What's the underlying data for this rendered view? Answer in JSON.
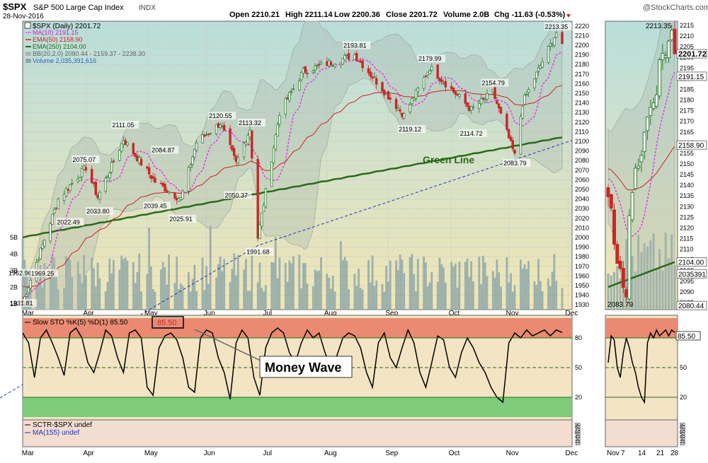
{
  "header": {
    "symbol": "$SPX",
    "name": "S&P 500 Large Cap Index",
    "exchange": "INDX",
    "date": "28-Nov-2016",
    "stats": {
      "open": "Open 2210.21",
      "high": "High 2211.14",
      "low": "Low 2200.36",
      "close": "Close 2201.72",
      "volume": "Volume 2.0B",
      "chg": "Chg -11.63 (-0.53%)"
    },
    "watermark": "@StockCharts.com"
  },
  "colors": {
    "price_up": "#2e7d32",
    "price_down": "#c62828",
    "ma10": "#e040e0",
    "ema50": "#cc2222",
    "ema250": "#2a6a1a",
    "volume": "#8fa8a8",
    "trendline": "#2233bb",
    "sto_line": "#000000",
    "overbought": "#e8705c",
    "oversold": "#6cc46c",
    "pane_bg_top": "#b8dcd8",
    "pane_bg_bottom": "#f3e6b8"
  },
  "legend": {
    "main_title": "$SPX (Daily) 2201.72",
    "ma10": "MA(10) 2191.15",
    "ema50": "EMA(50) 2158.90",
    "ema250": "EMA(250) 2104.00",
    "bb": "BB(20,2.0) 2080.44 - 2159.37 - 2238.30",
    "volume": "Volume 2,035,391,616"
  },
  "chart_data": [
    {
      "type": "candlestick",
      "title": "$SPX (Daily) 2201.72",
      "x_months": [
        "Mar",
        "Apr",
        "May",
        "Jun",
        "Jul",
        "Aug",
        "Sep",
        "Oct",
        "Nov",
        "Dec"
      ],
      "y_ticks": [
        2220,
        2210,
        2200,
        2190,
        2180,
        2170,
        2160,
        2150,
        2140,
        2130,
        2120,
        2110,
        2100,
        2090,
        2080,
        2070,
        2060,
        2050,
        2040,
        2030,
        2020,
        2010,
        2000,
        1990,
        1980,
        1970,
        1960,
        1950,
        1940,
        1930
      ],
      "ylim": [
        1925,
        2225
      ],
      "close_series": [
        {
          "date": "2016-02-29",
          "value": 1932
        },
        {
          "date": "2016-03-08",
          "value": 1980
        },
        {
          "date": "2016-03-18",
          "value": 2040
        },
        {
          "date": "2016-04-01",
          "value": 2073
        },
        {
          "date": "2016-04-07",
          "value": 2042
        },
        {
          "date": "2016-04-20",
          "value": 2102
        },
        {
          "date": "2016-05-06",
          "value": 2058
        },
        {
          "date": "2016-05-19",
          "value": 2040
        },
        {
          "date": "2016-05-27",
          "value": 2099
        },
        {
          "date": "2016-06-08",
          "value": 2119
        },
        {
          "date": "2016-06-16",
          "value": 2077
        },
        {
          "date": "2016-06-23",
          "value": 2113
        },
        {
          "date": "2016-06-27",
          "value": 2000
        },
        {
          "date": "2016-07-08",
          "value": 2130
        },
        {
          "date": "2016-07-20",
          "value": 2173
        },
        {
          "date": "2016-08-15",
          "value": 2190
        },
        {
          "date": "2016-09-09",
          "value": 2127
        },
        {
          "date": "2016-09-22",
          "value": 2177
        },
        {
          "date": "2016-10-13",
          "value": 2133
        },
        {
          "date": "2016-10-24",
          "value": 2151
        },
        {
          "date": "2016-11-04",
          "value": 2085
        },
        {
          "date": "2016-11-08",
          "value": 2140
        },
        {
          "date": "2016-11-25",
          "value": 2213
        },
        {
          "date": "2016-11-28",
          "value": 2201.72
        }
      ],
      "annotations": [
        {
          "label": "1931.81",
          "date": "2016-02-29",
          "value": 1931.81
        },
        {
          "label": "1962.96",
          "date": "2016-03-01",
          "value": 1962.96
        },
        {
          "label": "1969.25",
          "date": "2016-03-10",
          "value": 1969.25
        },
        {
          "label": "2022.49",
          "date": "2016-03-23",
          "value": 2022.49
        },
        {
          "label": "2075.07",
          "date": "2016-03-31",
          "value": 2075.07
        },
        {
          "label": "2033.80",
          "date": "2016-04-07",
          "value": 2033.8
        },
        {
          "label": "2111.05",
          "date": "2016-04-20",
          "value": 2111.05
        },
        {
          "label": "2084.87",
          "date": "2016-05-10",
          "value": 2084.87
        },
        {
          "label": "2039.45",
          "date": "2016-05-06",
          "value": 2039.45
        },
        {
          "label": "2025.91",
          "date": "2016-05-19",
          "value": 2025.91
        },
        {
          "label": "2120.55",
          "date": "2016-06-08",
          "value": 2120.55
        },
        {
          "label": "2050.37",
          "date": "2016-06-16",
          "value": 2050.37
        },
        {
          "label": "2113.32",
          "date": "2016-06-23",
          "value": 2113.32
        },
        {
          "label": "1991.68",
          "date": "2016-06-27",
          "value": 1991.68
        },
        {
          "label": "2193.81",
          "date": "2016-08-15",
          "value": 2193.81
        },
        {
          "label": "2179.99",
          "date": "2016-09-22",
          "value": 2179.99
        },
        {
          "label": "2119.12",
          "date": "2016-09-12",
          "value": 2119.12
        },
        {
          "label": "2154.79",
          "date": "2016-10-24",
          "value": 2154.79
        },
        {
          "label": "2114.72",
          "date": "2016-10-13",
          "value": 2114.72
        },
        {
          "label": "2083.79",
          "date": "2016-11-04",
          "value": 2083.79
        },
        {
          "label": "2213.35",
          "date": "2016-11-25",
          "value": 2213.35
        }
      ],
      "line_label": "Green Line",
      "right_tags": [
        "2201.72",
        "2191.15",
        "2158.90",
        "2104.00",
        "2035391",
        "2080.44"
      ]
    },
    {
      "type": "line",
      "title": "Slow STO %K(5) %D(1) 85.50",
      "value_box": "85.50",
      "callout": "Money Wave",
      "y_ticks": [
        80,
        50,
        20
      ],
      "ylim": [
        0,
        100
      ],
      "overbought": 80,
      "oversold": 20,
      "values": [
        85,
        75,
        40,
        80,
        88,
        75,
        60,
        42,
        85,
        90,
        80,
        55,
        45,
        65,
        88,
        82,
        60,
        45,
        85,
        88,
        80,
        30,
        22,
        70,
        82,
        85,
        78,
        60,
        30,
        25,
        80,
        88,
        85,
        60,
        45,
        18,
        75,
        88,
        80,
        40,
        22,
        70,
        85,
        90,
        85,
        65,
        55,
        75,
        88,
        80,
        85,
        65,
        50,
        62,
        80,
        85,
        82,
        70,
        45,
        30,
        75,
        85,
        60,
        50,
        70,
        88,
        75,
        45,
        30,
        55,
        82,
        78,
        50,
        40,
        65,
        80,
        70,
        55,
        45,
        30,
        20,
        15,
        75,
        85,
        80,
        88,
        82,
        85,
        88,
        82,
        88,
        85.5
      ]
    },
    {
      "type": "line",
      "title": "SCTR-$SPX undef",
      "series": [
        {
          "name": "MA(155) undef",
          "values": []
        }
      ],
      "y_ticks": [
        90,
        80,
        70,
        60,
        50,
        40,
        30,
        20,
        10
      ]
    }
  ],
  "zoom_panel": {
    "x_labels": [
      "Nov",
      "7",
      "14",
      "21",
      "28"
    ],
    "y_ticks": [
      2215,
      2210,
      2205,
      2200,
      2195,
      2190,
      2185,
      2180,
      2175,
      2170,
      2165,
      2160,
      2155,
      2150,
      2145,
      2140,
      2135,
      2130,
      2125,
      2120,
      2115,
      2110,
      2105,
      2100,
      2095,
      2090,
      2085
    ],
    "labels": {
      "high": "2213.35",
      "low": "2083.79"
    },
    "tags": [
      "2201.72",
      "2191.15",
      "2158.90",
      "2104.00",
      "2035391",
      "2080.44"
    ],
    "sto_tag": "85.50",
    "sto_ticks": [
      80,
      50,
      20
    ],
    "sctr_ticks": [
      90,
      80,
      70,
      60,
      50,
      40,
      30,
      20,
      10
    ]
  },
  "volume_axis": [
    "5B",
    "4B",
    "3B",
    "2B",
    "1B"
  ]
}
